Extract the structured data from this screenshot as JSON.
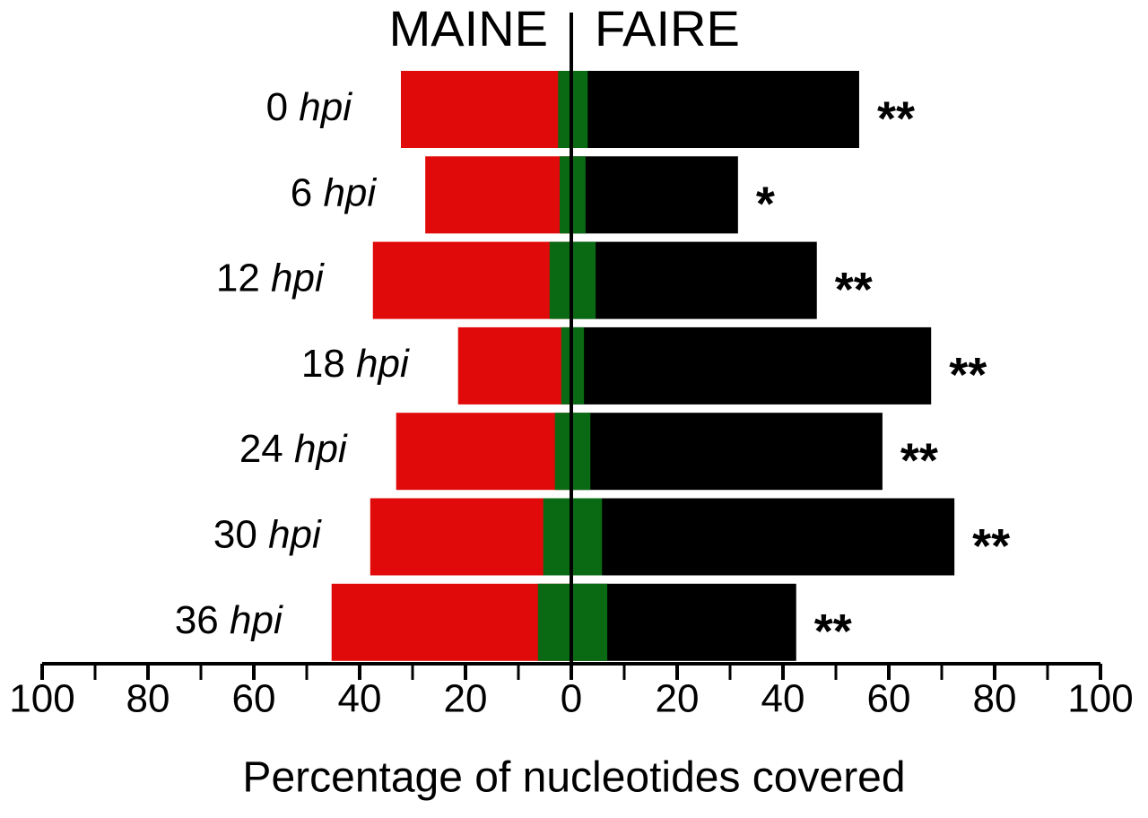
{
  "chart_data": {
    "type": "butterfly-bar",
    "axis_label": "Percentage of nucleotides covered",
    "categories": [
      "0 hpi",
      "6 hpi",
      "12 hpi",
      "18 hpi",
      "24 hpi",
      "30 hpi",
      "36 hpi"
    ],
    "series": [
      {
        "name": "MAINE",
        "color": "#e00a0a",
        "values": [
          -32.2,
          -27.6,
          -37.5,
          -21.4,
          -33.1,
          -38.0,
          -45.3
        ]
      },
      {
        "name": "FAIRE",
        "color": "#000000",
        "values": [
          54.4,
          31.5,
          46.4,
          68.0,
          58.8,
          72.4,
          42.5
        ]
      },
      {
        "color": "#0a6a14",
        "values": [
          -2.5,
          -2.2,
          -4.1,
          -1.9,
          -3.1,
          -5.3,
          -6.3
        ]
      },
      {
        "color": "#0a6a14",
        "values": [
          3.1,
          2.7,
          4.6,
          2.4,
          3.6,
          5.8,
          6.8
        ]
      }
    ],
    "significance": [
      "**",
      "*",
      "**",
      "**",
      "**",
      "**",
      "**"
    ],
    "xlim": [
      -100,
      100
    ],
    "xticks": [
      {
        "value": -100,
        "label": "100"
      },
      {
        "value": -80,
        "label": "80"
      },
      {
        "value": -60,
        "label": "60"
      },
      {
        "value": -40,
        "label": "40"
      },
      {
        "value": -20,
        "label": "20"
      },
      0,
      20,
      40,
      60,
      80,
      100
    ],
    "minor_xticks": [
      -90,
      -70,
      -50,
      -30,
      -10,
      10,
      30,
      50,
      70,
      90
    ]
  }
}
